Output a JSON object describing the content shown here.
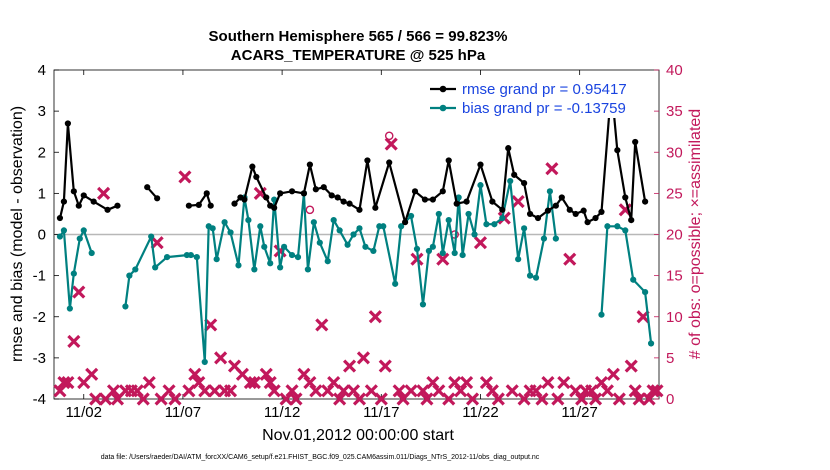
{
  "chart_data": {
    "type": "line",
    "title": "Southern Hemisphere 565 / 566 = 99.823%",
    "subtitle": "ACARS_TEMPERATURE @ 525 hPa",
    "xlabel": "Nov.01,2012 00:00:00 start",
    "ylabel": "rmse and bias (model - observation)",
    "ylabel_right": "# of obs: o=possible; ×=assimilated",
    "footnote": "data file: /Users/raeder/DAI/ATM_forcXX/CAM6_setup/f.e21.FHIST_BGC.f09_025.CAM6assim.011/Diags_NTrS_2012-11/obs_diag_output.nc",
    "xlim": [
      0.5,
      31
    ],
    "ylim": [
      -4,
      4
    ],
    "ylim_right": [
      0,
      40
    ],
    "x_ticks": [
      2,
      7,
      12,
      17,
      22,
      27
    ],
    "x_tick_labels": [
      "11/02",
      "11/07",
      "11/12",
      "11/17",
      "11/22",
      "11/27"
    ],
    "y_ticks": [
      -4,
      -3,
      -2,
      -1,
      0,
      1,
      2,
      3,
      4
    ],
    "y_tick_labels": [
      "-4",
      "-3",
      "-2",
      "-1",
      "0",
      "1",
      "2",
      "3",
      "4"
    ],
    "y_right_ticks": [
      0,
      5,
      10,
      15,
      20,
      25,
      30,
      35,
      40
    ],
    "y_right_tick_labels": [
      "0",
      "5",
      "10",
      "15",
      "20",
      "25",
      "30",
      "35",
      "40"
    ],
    "legend_position": "top-right",
    "zero_line": true,
    "grid": false,
    "series": [
      {
        "name": "rmse grand pr = 0.95417",
        "color": "#000000",
        "values": [
          [
            0.8,
            0.4
          ],
          [
            1.0,
            0.8
          ],
          [
            1.2,
            2.7
          ],
          [
            1.5,
            1.05
          ],
          [
            1.75,
            0.7
          ],
          [
            2.0,
            0.95
          ],
          [
            2.5,
            0.8
          ],
          [
            3.2,
            0.6
          ],
          [
            3.7,
            0.7
          ],
          [
            5.2,
            1.15
          ],
          [
            5.7,
            0.88
          ],
          [
            7.3,
            0.7
          ],
          [
            7.8,
            0.72
          ],
          [
            8.2,
            1.0
          ],
          [
            8.4,
            0.7
          ],
          [
            9.6,
            0.75
          ],
          [
            9.9,
            0.9
          ],
          [
            10.1,
            0.85
          ],
          [
            10.5,
            1.65
          ],
          [
            10.7,
            1.4
          ],
          [
            11.2,
            0.9
          ],
          [
            11.4,
            0.7
          ],
          [
            11.6,
            0.65
          ],
          [
            11.9,
            1.0
          ],
          [
            12.5,
            1.05
          ],
          [
            13.1,
            1.0
          ],
          [
            13.4,
            1.7
          ],
          [
            13.7,
            1.1
          ],
          [
            14.1,
            1.15
          ],
          [
            14.5,
            0.95
          ],
          [
            14.8,
            0.9
          ],
          [
            15.1,
            0.8
          ],
          [
            15.4,
            0.75
          ],
          [
            15.9,
            0.6
          ],
          [
            16.3,
            1.8
          ],
          [
            16.7,
            0.65
          ],
          [
            17.4,
            1.75
          ],
          [
            18.2,
            0.3
          ],
          [
            18.7,
            1.05
          ],
          [
            19.2,
            0.85
          ],
          [
            19.6,
            0.85
          ],
          [
            20.1,
            1.05
          ],
          [
            20.4,
            1.8
          ],
          [
            20.8,
            0.75
          ],
          [
            21.3,
            0.8
          ],
          [
            22.0,
            1.7
          ],
          [
            22.6,
            0.8
          ],
          [
            23.1,
            0.6
          ],
          [
            23.4,
            2.1
          ],
          [
            23.7,
            1.45
          ],
          [
            24.2,
            1.25
          ],
          [
            24.5,
            0.5
          ],
          [
            24.9,
            0.4
          ],
          [
            25.4,
            0.58
          ],
          [
            25.8,
            0.7
          ],
          [
            26.1,
            0.9
          ],
          [
            26.5,
            0.6
          ],
          [
            26.8,
            0.5
          ],
          [
            27.2,
            0.58
          ],
          [
            27.4,
            0.3
          ],
          [
            27.8,
            0.4
          ],
          [
            28.1,
            0.55
          ],
          [
            28.6,
            3.6
          ],
          [
            28.9,
            2.05
          ],
          [
            29.3,
            0.9
          ],
          [
            29.6,
            0.35
          ],
          [
            29.8,
            2.25
          ],
          [
            30.3,
            0.8
          ]
        ]
      },
      {
        "name": "bias grand pr = -0.13759",
        "color": "#008080",
        "values": [
          [
            0.8,
            -0.05
          ],
          [
            1.0,
            0.1
          ],
          [
            1.3,
            -1.8
          ],
          [
            1.5,
            -0.95
          ],
          [
            1.8,
            -0.1
          ],
          [
            2.0,
            0.1
          ],
          [
            2.4,
            -0.45
          ],
          [
            4.1,
            -1.75
          ],
          [
            4.3,
            -1.0
          ],
          [
            4.6,
            -0.85
          ],
          [
            5.4,
            -0.05
          ],
          [
            5.6,
            -0.8
          ],
          [
            6.2,
            -0.55
          ],
          [
            7.2,
            -0.5
          ],
          [
            7.4,
            -0.5
          ],
          [
            7.7,
            -0.55
          ],
          [
            8.1,
            -3.1
          ],
          [
            8.3,
            0.2
          ],
          [
            8.5,
            0.15
          ],
          [
            8.7,
            -0.6
          ],
          [
            9.1,
            0.3
          ],
          [
            9.4,
            0.05
          ],
          [
            9.8,
            -0.75
          ],
          [
            10.1,
            0.9
          ],
          [
            10.3,
            0.35
          ],
          [
            10.6,
            -0.85
          ],
          [
            10.9,
            0.2
          ],
          [
            11.1,
            -0.3
          ],
          [
            11.4,
            -0.7
          ],
          [
            11.6,
            0.85
          ],
          [
            11.9,
            -0.8
          ],
          [
            12.1,
            -0.3
          ],
          [
            12.5,
            -0.5
          ],
          [
            12.8,
            -0.55
          ],
          [
            13.1,
            1.0
          ],
          [
            13.3,
            -0.85
          ],
          [
            13.6,
            0.3
          ],
          [
            13.9,
            -0.2
          ],
          [
            14.3,
            -0.65
          ],
          [
            14.6,
            0.35
          ],
          [
            14.9,
            0.1
          ],
          [
            15.3,
            -0.25
          ],
          [
            15.6,
            0.0
          ],
          [
            15.9,
            0.15
          ],
          [
            16.2,
            -0.3
          ],
          [
            16.6,
            -0.4
          ],
          [
            16.9,
            0.2
          ],
          [
            17.1,
            0.2
          ],
          [
            17.7,
            -1.2
          ],
          [
            18.0,
            0.2
          ],
          [
            18.5,
            0.45
          ],
          [
            18.8,
            -0.35
          ],
          [
            19.1,
            -1.7
          ],
          [
            19.4,
            -0.4
          ],
          [
            19.6,
            -0.3
          ],
          [
            19.9,
            0.5
          ],
          [
            20.1,
            -0.45
          ],
          [
            20.4,
            0.35
          ],
          [
            20.7,
            -0.45
          ],
          [
            20.9,
            0.9
          ],
          [
            21.1,
            -0.5
          ],
          [
            21.4,
            0.5
          ],
          [
            21.7,
            0.0
          ],
          [
            22.0,
            1.2
          ],
          [
            22.3,
            0.25
          ],
          [
            22.7,
            0.25
          ],
          [
            23.1,
            0.4
          ],
          [
            23.5,
            1.3
          ],
          [
            23.9,
            -0.6
          ],
          [
            24.2,
            0.15
          ],
          [
            24.5,
            -1.0
          ],
          [
            24.8,
            -1.05
          ],
          [
            25.2,
            -0.1
          ],
          [
            25.5,
            1.05
          ],
          [
            25.8,
            -0.1
          ],
          [
            28.1,
            -1.95
          ],
          [
            28.4,
            0.2
          ],
          [
            28.9,
            0.2
          ],
          [
            29.3,
            0.1
          ],
          [
            29.7,
            -1.1
          ],
          [
            30.3,
            -1.4
          ],
          [
            30.6,
            -2.65
          ]
        ]
      }
    ],
    "obs_possible": {
      "name": "# of obs possible",
      "color": "#c2185b",
      "points": [
        [
          13.4,
          23
        ],
        [
          17.4,
          32
        ],
        [
          20.7,
          20
        ]
      ]
    },
    "obs_assimilated": {
      "name": "# of obs assimilated",
      "color": "#c2185b",
      "points": [
        [
          0.8,
          1
        ],
        [
          1.0,
          2
        ],
        [
          1.2,
          2
        ],
        [
          1.5,
          7
        ],
        [
          1.75,
          13
        ],
        [
          2.0,
          2
        ],
        [
          2.4,
          3
        ],
        [
          2.6,
          0
        ],
        [
          3.0,
          25
        ],
        [
          3.1,
          0
        ],
        [
          3.5,
          1
        ],
        [
          3.7,
          0
        ],
        [
          4.1,
          1
        ],
        [
          4.4,
          1
        ],
        [
          4.7,
          1
        ],
        [
          5.0,
          0
        ],
        [
          5.3,
          2
        ],
        [
          5.7,
          19
        ],
        [
          5.9,
          0
        ],
        [
          6.3,
          1
        ],
        [
          6.6,
          0
        ],
        [
          7.1,
          27
        ],
        [
          7.3,
          1
        ],
        [
          7.6,
          3
        ],
        [
          7.8,
          2
        ],
        [
          8.1,
          1
        ],
        [
          8.4,
          9
        ],
        [
          8.6,
          1
        ],
        [
          8.9,
          5
        ],
        [
          9.1,
          1
        ],
        [
          9.4,
          1
        ],
        [
          9.6,
          4
        ],
        [
          10.0,
          3
        ],
        [
          10.4,
          2
        ],
        [
          10.6,
          2
        ],
        [
          10.9,
          25
        ],
        [
          11.2,
          3
        ],
        [
          11.4,
          2
        ],
        [
          11.6,
          1
        ],
        [
          11.9,
          18
        ],
        [
          12.2,
          0
        ],
        [
          12.5,
          1
        ],
        [
          12.7,
          0
        ],
        [
          13.1,
          3
        ],
        [
          13.4,
          2
        ],
        [
          13.7,
          1
        ],
        [
          14.0,
          9
        ],
        [
          14.3,
          1
        ],
        [
          14.6,
          2
        ],
        [
          14.9,
          0
        ],
        [
          15.1,
          1
        ],
        [
          15.4,
          4
        ],
        [
          15.6,
          1
        ],
        [
          15.9,
          0
        ],
        [
          16.1,
          5
        ],
        [
          16.5,
          1
        ],
        [
          16.7,
          10
        ],
        [
          17.0,
          0
        ],
        [
          17.2,
          4
        ],
        [
          17.5,
          31
        ],
        [
          17.9,
          1
        ],
        [
          18.1,
          0
        ],
        [
          18.5,
          1
        ],
        [
          18.8,
          17
        ],
        [
          19.1,
          1
        ],
        [
          19.3,
          0
        ],
        [
          19.6,
          2
        ],
        [
          19.9,
          1
        ],
        [
          20.1,
          17
        ],
        [
          20.4,
          0
        ],
        [
          20.7,
          2
        ],
        [
          21.0,
          1
        ],
        [
          21.3,
          2
        ],
        [
          21.6,
          0
        ],
        [
          22.0,
          19
        ],
        [
          22.3,
          2
        ],
        [
          22.6,
          1
        ],
        [
          22.9,
          0
        ],
        [
          23.2,
          22
        ],
        [
          23.6,
          1
        ],
        [
          23.9,
          24
        ],
        [
          24.2,
          0
        ],
        [
          24.5,
          1
        ],
        [
          24.8,
          1
        ],
        [
          25.1,
          0
        ],
        [
          25.4,
          2
        ],
        [
          25.6,
          28
        ],
        [
          25.9,
          0
        ],
        [
          26.2,
          2
        ],
        [
          26.5,
          17
        ],
        [
          26.8,
          1
        ],
        [
          27.1,
          0
        ],
        [
          27.3,
          1
        ],
        [
          27.6,
          1
        ],
        [
          27.8,
          0
        ],
        [
          28.1,
          2
        ],
        [
          28.4,
          1
        ],
        [
          28.7,
          3
        ],
        [
          29.0,
          0
        ],
        [
          29.3,
          23
        ],
        [
          29.6,
          4
        ],
        [
          29.8,
          1
        ],
        [
          30.0,
          0
        ],
        [
          30.2,
          10
        ],
        [
          30.5,
          0
        ],
        [
          30.7,
          1
        ],
        [
          30.9,
          1
        ]
      ]
    }
  }
}
